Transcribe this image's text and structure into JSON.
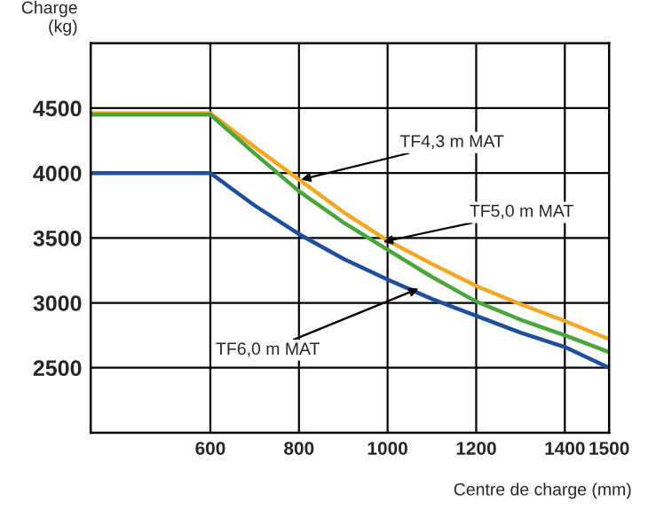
{
  "chart_data": {
    "type": "line",
    "ylabel": "Charge\n(kg)",
    "xlabel": "Centre de charge (mm)",
    "x": [
      330,
      600,
      700,
      800,
      900,
      1000,
      1100,
      1200,
      1300,
      1400,
      1500
    ],
    "series": [
      {
        "color": "#f5a623",
        "values": [
          4460,
          4460,
          4200,
          3950,
          3700,
          3480,
          3300,
          3130,
          2990,
          2860,
          2720
        ]
      },
      {
        "color": "#4aa63c",
        "values": [
          4450,
          4450,
          4150,
          3860,
          3620,
          3410,
          3200,
          3010,
          2870,
          2750,
          2620
        ]
      },
      {
        "color": "#1f4e9c",
        "values": [
          4000,
          4000,
          3750,
          3530,
          3340,
          3180,
          3030,
          2900,
          2770,
          2660,
          2500
        ]
      }
    ],
    "annotations": [
      {
        "text": "TF4,3 m MAT",
        "x": 805,
        "y": 3950
      },
      {
        "text": "TF5,0 m MAT",
        "x": 990,
        "y": 3470
      },
      {
        "text": "TF6,0 m MAT",
        "x": 1070,
        "y": 3110
      }
    ],
    "xlim": [
      330,
      1500
    ],
    "xticks": [
      600,
      800,
      1000,
      1200,
      1400,
      1500
    ],
    "ylim": [
      2000,
      5000
    ],
    "yticks": [
      2500,
      3000,
      3500,
      4000,
      4500
    ],
    "grid": true,
    "legend": false,
    "marker": "none",
    "line_style": "solid"
  }
}
